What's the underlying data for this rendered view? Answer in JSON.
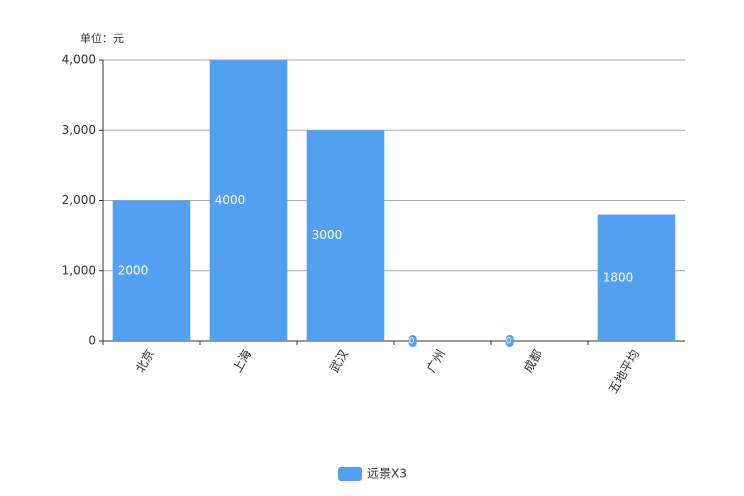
{
  "chart_data": {
    "type": "bar",
    "y_label": "单位：元",
    "categories": [
      "北京",
      "上海",
      "武汉",
      "广州",
      "成都",
      "五地平均"
    ],
    "series": [
      {
        "name": "远景X3",
        "color": "#539ff0",
        "values": [
          2000,
          4000,
          3000,
          0,
          0,
          1800
        ]
      }
    ],
    "ylim": [
      0,
      4000
    ],
    "yticks": [
      0,
      {
        "value": 1000,
        "label": "1,000"
      },
      {
        "value": 2000,
        "label": "2,000"
      },
      {
        "value": 3000,
        "label": "3,000"
      },
      {
        "value": 4000,
        "label": "4,000"
      }
    ],
    "grid": true,
    "legend": "bottom"
  }
}
